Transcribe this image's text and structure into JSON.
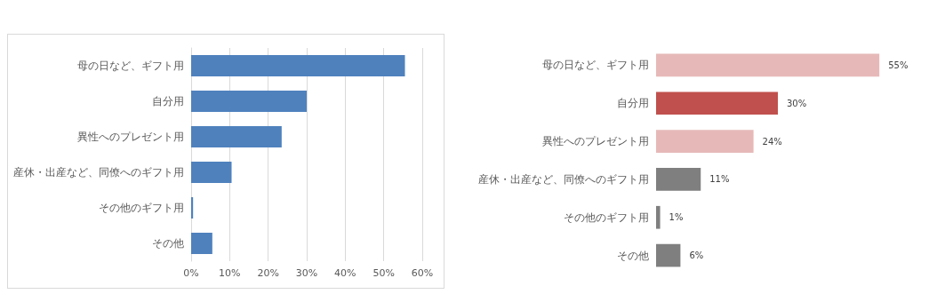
{
  "chart_data": [
    {
      "type": "bar",
      "orientation": "horizontal",
      "categories": [
        "母の日など、ギフト用",
        "自分用",
        "異性へのプレゼント用",
        "産休・出産など、同僚へのギフト用",
        "その他のギフト用",
        "その他"
      ],
      "values": [
        55.5,
        30,
        23.5,
        10.5,
        0.5,
        5.5
      ],
      "color": "#4f81bd",
      "xlim": [
        0,
        60
      ],
      "xticks": [
        {
          "value": 0,
          "label": "0%"
        },
        {
          "value": 10,
          "label": "10%"
        },
        {
          "value": 20,
          "label": "20%"
        },
        {
          "value": 30,
          "label": "30%"
        },
        {
          "value": 40,
          "label": "40%"
        },
        {
          "value": 50,
          "label": "50%"
        },
        {
          "value": 60,
          "label": "60%"
        }
      ],
      "grid": "x"
    },
    {
      "type": "bar",
      "orientation": "horizontal",
      "categories": [
        "母の日など、ギフト用",
        "自分用",
        "異性へのプレゼント用",
        "産休・出産など、同僚へのギフト用",
        "その他のギフト用",
        "その他"
      ],
      "values": [
        55,
        30,
        24,
        11,
        1,
        6
      ],
      "colors": [
        "#e6b9b8",
        "#c0504d",
        "#e6b9b8",
        "#7f7f7f",
        "#7f7f7f",
        "#7f7f7f"
      ],
      "value_labels": [
        "55%",
        "30%",
        "24%",
        "11%",
        "1%",
        "6%"
      ],
      "tick_labels": "y"
    }
  ]
}
